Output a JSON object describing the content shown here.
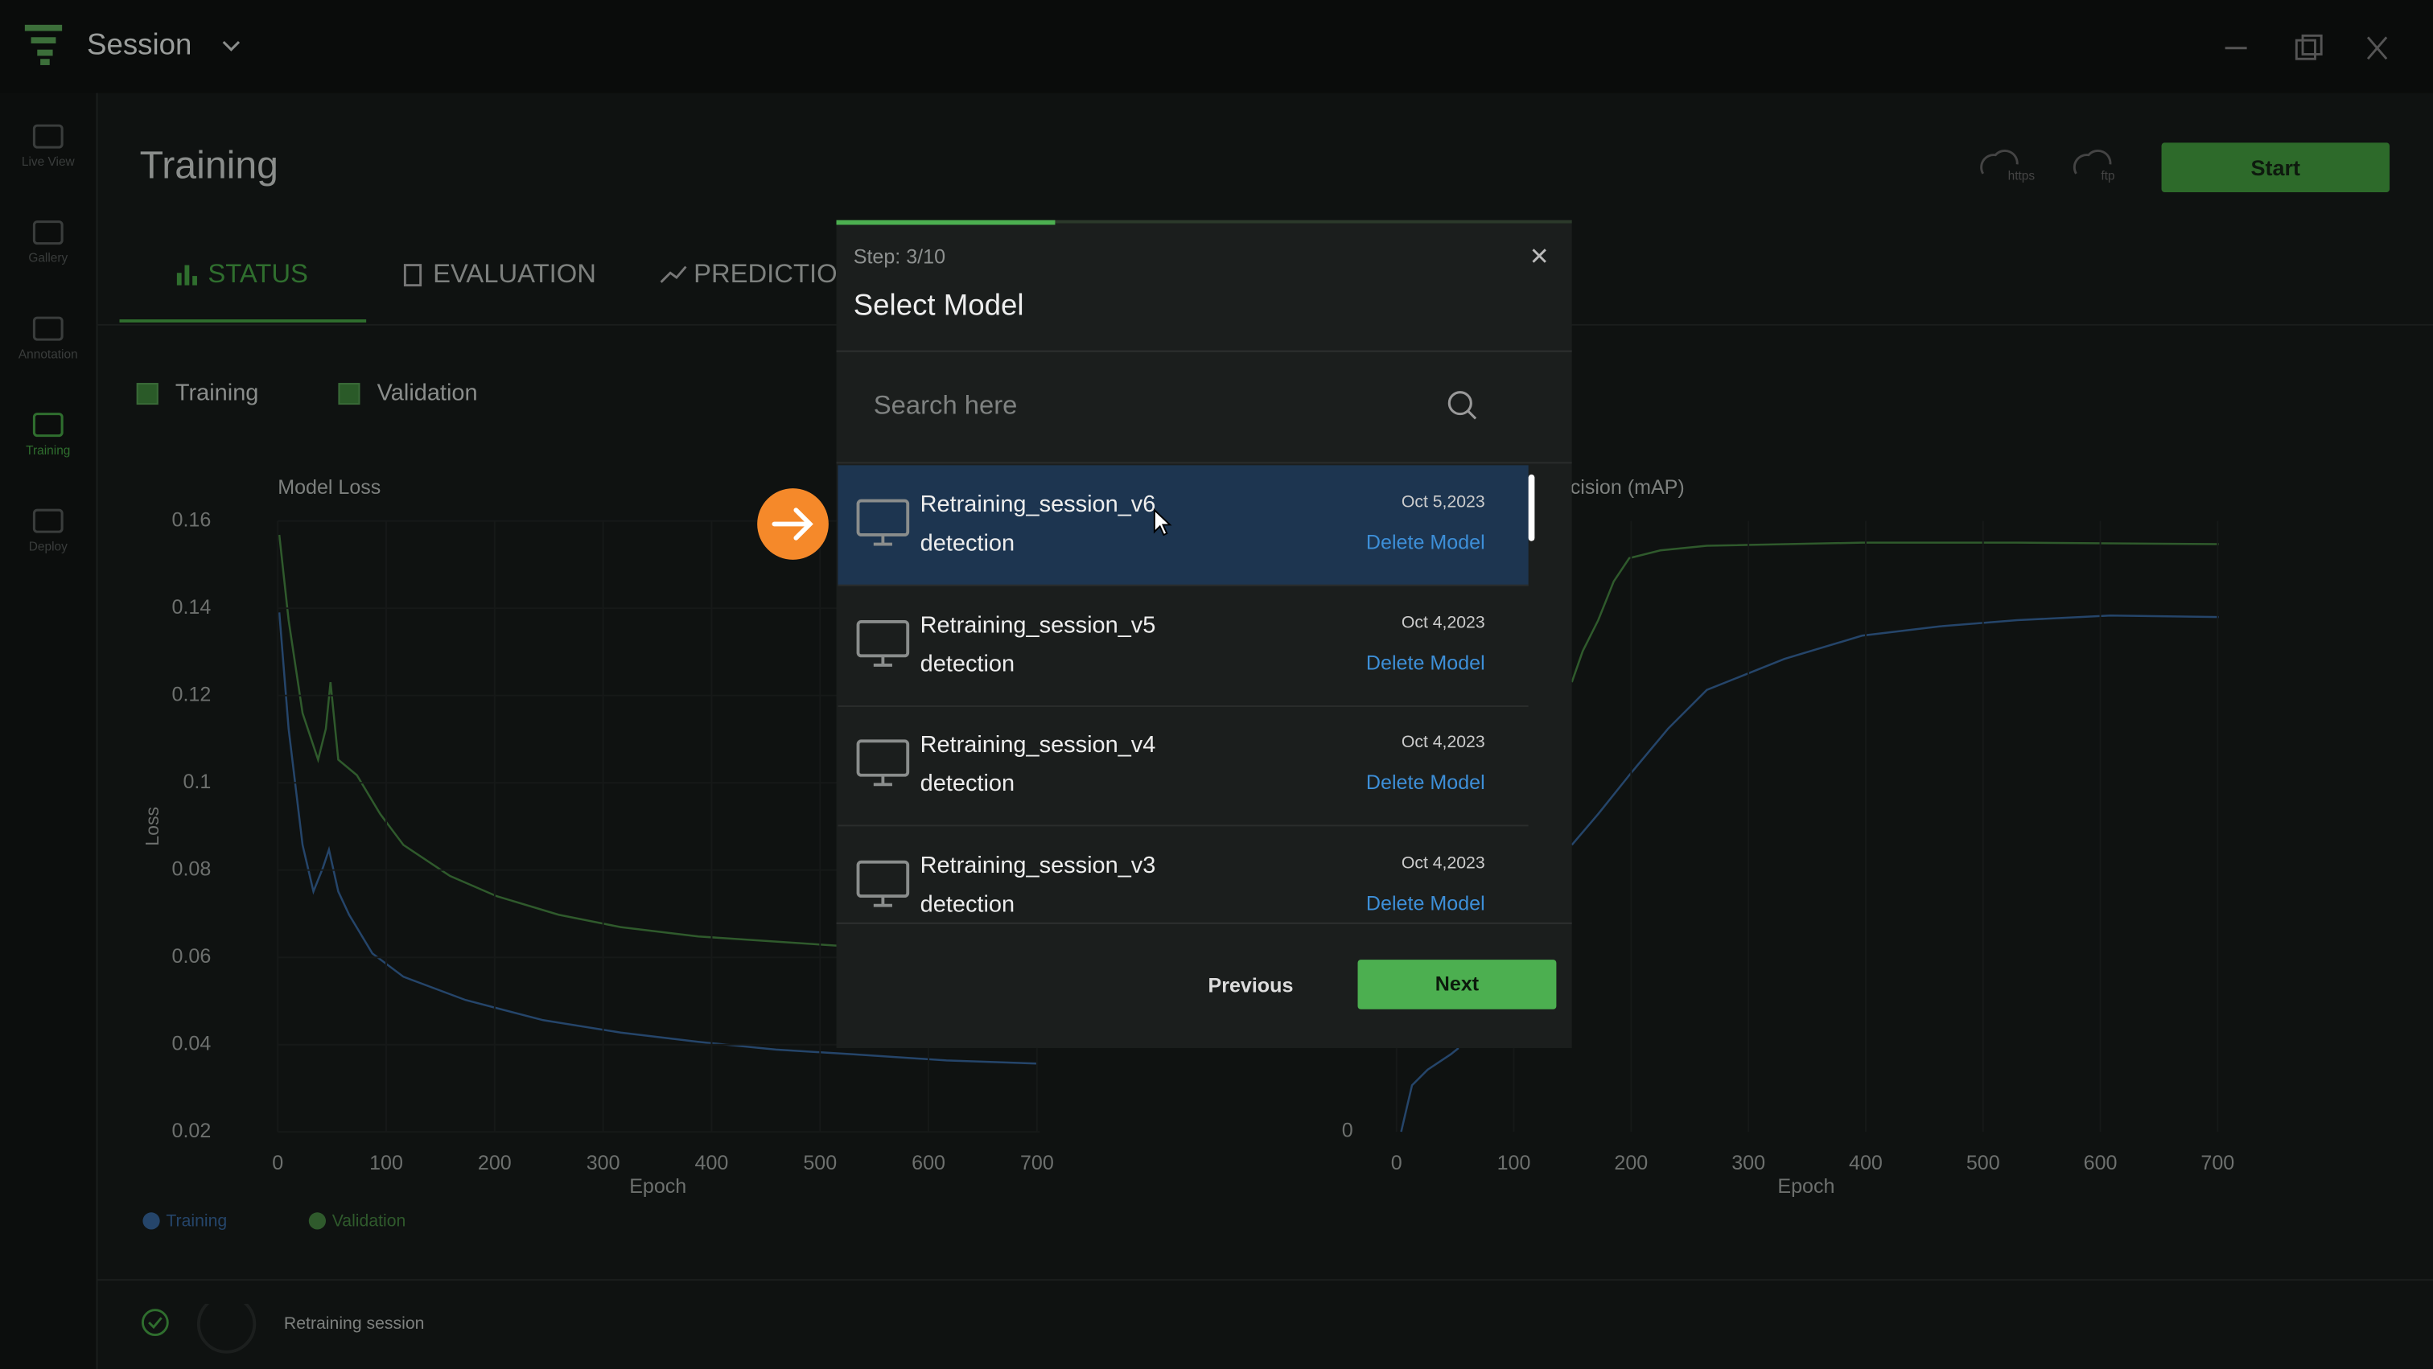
{
  "app": {
    "title": "Session"
  },
  "sidebar": [
    {
      "label": "Live View"
    },
    {
      "label": "Gallery"
    },
    {
      "label": "Annotation"
    },
    {
      "label": "Training"
    },
    {
      "label": "Deploy"
    }
  ],
  "header": {
    "title": "Training",
    "https": "https",
    "ftp": "ftp",
    "start": "Start"
  },
  "tabs": [
    "STATUS",
    "EVALUATION",
    "PREDICTION"
  ],
  "filters": [
    "Training",
    "Validation"
  ],
  "loss_chart": {
    "title": "Model Loss",
    "y_label": "Loss",
    "x_label": "Epoch",
    "yticks": [
      "0.16",
      "0.14",
      "0.12",
      "0.1",
      "0.08",
      "0.06",
      "0.04",
      "0.02"
    ],
    "xticks": [
      "0",
      "100",
      "200",
      "300",
      "400",
      "500",
      "600",
      "700"
    ]
  },
  "map_chart": {
    "title": "cision (mAP)",
    "x_label": "Epoch",
    "yticks": [
      "0"
    ],
    "xticks": [
      "0",
      "100",
      "200",
      "300",
      "400",
      "500",
      "600",
      "700"
    ]
  },
  "legend": [
    "Training",
    "Validation"
  ],
  "footer": {
    "status": "Retraining session"
  },
  "modal": {
    "step": "Step: 3/10",
    "title": "Select Model",
    "search_placeholder": "Search here",
    "models": [
      {
        "name": "Retraining_session_v6",
        "type": "detection",
        "date": "Oct 5,2023",
        "action": "Delete Model"
      },
      {
        "name": "Retraining_session_v5",
        "type": "detection",
        "date": "Oct 4,2023",
        "action": "Delete Model"
      },
      {
        "name": "Retraining_session_v4",
        "type": "detection",
        "date": "Oct 4,2023",
        "action": "Delete Model"
      },
      {
        "name": "Retraining_session_v3",
        "type": "detection",
        "date": "Oct 4,2023",
        "action": "Delete Model"
      }
    ],
    "previous": "Previous",
    "next": "Next"
  }
}
